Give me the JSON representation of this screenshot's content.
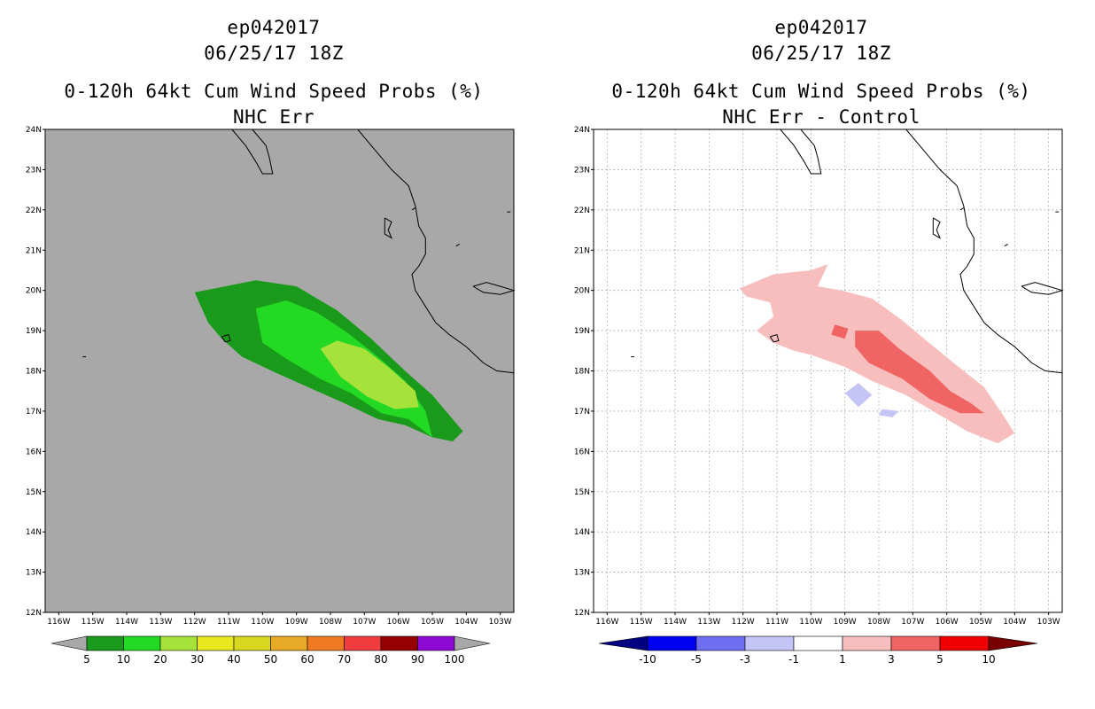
{
  "left": {
    "line1": "ep042017",
    "line2": "06/25/17 18Z",
    "line3": "0-120h 64kt Cum Wind Speed Probs (%)",
    "line4": "NHC Err"
  },
  "right": {
    "line1": "ep042017",
    "line2": "06/25/17 18Z",
    "line3": "0-120h 64kt Cum Wind Speed Probs (%)",
    "line4": "NHC Err - Control"
  },
  "colors": {
    "ocean": "#a8a8a8",
    "right_bg": "#ffffff",
    "coast": "#000000",
    "grid": "#9a9a9a"
  },
  "chart_data": [
    {
      "type": "heatmap",
      "title": "0-120h 64kt Cum Wind Speed Probs (%) - NHC Err",
      "x_ticks": [
        "116W",
        "115W",
        "114W",
        "113W",
        "112W",
        "111W",
        "110W",
        "109W",
        "108W",
        "107W",
        "106W",
        "105W",
        "104W",
        "103W"
      ],
      "y_ticks": [
        "12N",
        "13N",
        "14N",
        "15N",
        "16N",
        "17N",
        "18N",
        "19N",
        "20N",
        "21N",
        "22N",
        "23N",
        "24N"
      ],
      "xlim": [
        -116.4,
        -102.6
      ],
      "ylim": [
        12,
        24
      ],
      "grid": false,
      "contours": [
        {
          "level": 5,
          "color": "#1a9a1a",
          "points": [
            [
              -112.0,
              19.95
            ],
            [
              -111.4,
              20.05
            ],
            [
              -110.2,
              20.25
            ],
            [
              -109.0,
              20.1
            ],
            [
              -107.8,
              19.5
            ],
            [
              -106.8,
              18.8
            ],
            [
              -105.8,
              18.0
            ],
            [
              -105.0,
              17.4
            ],
            [
              -104.1,
              16.5
            ],
            [
              -104.4,
              16.25
            ],
            [
              -105.0,
              16.35
            ],
            [
              -105.8,
              16.65
            ],
            [
              -106.6,
              16.8
            ],
            [
              -107.6,
              17.2
            ],
            [
              -108.4,
              17.5
            ],
            [
              -109.6,
              17.95
            ],
            [
              -110.6,
              18.35
            ],
            [
              -111.2,
              18.8
            ],
            [
              -111.6,
              19.2
            ]
          ]
        },
        {
          "level": 10,
          "color": "#23d923",
          "points": [
            [
              -110.2,
              19.55
            ],
            [
              -109.3,
              19.75
            ],
            [
              -108.4,
              19.45
            ],
            [
              -107.5,
              18.95
            ],
            [
              -106.6,
              18.35
            ],
            [
              -105.8,
              17.75
            ],
            [
              -105.2,
              17.0
            ],
            [
              -105.0,
              16.35
            ],
            [
              -105.7,
              16.8
            ],
            [
              -106.5,
              16.95
            ],
            [
              -107.4,
              17.45
            ],
            [
              -108.3,
              17.8
            ],
            [
              -109.3,
              18.3
            ],
            [
              -110.0,
              18.7
            ]
          ]
        },
        {
          "level": 20,
          "color": "#a6e23a",
          "points": [
            [
              -108.3,
              18.55
            ],
            [
              -107.8,
              18.75
            ],
            [
              -107.0,
              18.55
            ],
            [
              -106.3,
              18.1
            ],
            [
              -105.5,
              17.5
            ],
            [
              -105.4,
              17.1
            ],
            [
              -106.1,
              17.05
            ],
            [
              -106.9,
              17.35
            ],
            [
              -107.7,
              17.85
            ]
          ]
        }
      ],
      "colorbar": {
        "labels": [
          "5",
          "10",
          "20",
          "30",
          "40",
          "50",
          "60",
          "70",
          "80",
          "90",
          "100"
        ],
        "colors": [
          "#a8a8a8",
          "#1a9a1a",
          "#23d923",
          "#a6e23a",
          "#e8e81e",
          "#d8d820",
          "#e6aa28",
          "#ef7a22",
          "#f03c3c",
          "#960000",
          "#8c0ad2",
          "#a8a8a8"
        ]
      }
    },
    {
      "type": "heatmap",
      "title": "0-120h 64kt Cum Wind Speed Probs (%) - NHC Err - Control",
      "x_ticks": [
        "116W",
        "115W",
        "114W",
        "113W",
        "112W",
        "111W",
        "110W",
        "109W",
        "108W",
        "107W",
        "106W",
        "105W",
        "104W",
        "103W"
      ],
      "y_ticks": [
        "12N",
        "13N",
        "14N",
        "15N",
        "16N",
        "17N",
        "18N",
        "19N",
        "20N",
        "21N",
        "22N",
        "23N",
        "24N"
      ],
      "xlim": [
        -116.4,
        -102.6
      ],
      "ylim": [
        12,
        24
      ],
      "grid": true,
      "contours": [
        {
          "level": 1,
          "color": "#f8bebe",
          "points": [
            [
              -112.1,
              20.05
            ],
            [
              -111.1,
              20.4
            ],
            [
              -110.0,
              20.5
            ],
            [
              -109.5,
              20.65
            ],
            [
              -109.8,
              20.1
            ],
            [
              -109.1,
              20.0
            ],
            [
              -108.2,
              19.8
            ],
            [
              -107.3,
              19.25
            ],
            [
              -106.6,
              18.75
            ],
            [
              -105.8,
              18.2
            ],
            [
              -104.9,
              17.6
            ],
            [
              -104.3,
              16.85
            ],
            [
              -104.0,
              16.45
            ],
            [
              -104.5,
              16.2
            ],
            [
              -105.4,
              16.5
            ],
            [
              -106.2,
              16.9
            ],
            [
              -107.2,
              17.4
            ],
            [
              -108.2,
              17.75
            ],
            [
              -109.0,
              18.1
            ],
            [
              -110.0,
              18.4
            ],
            [
              -110.5,
              18.5
            ],
            [
              -111.1,
              18.7
            ],
            [
              -111.6,
              19.0
            ],
            [
              -111.1,
              19.35
            ],
            [
              -111.2,
              19.7
            ],
            [
              -111.9,
              19.85
            ]
          ]
        },
        {
          "level": 3,
          "color": "#f06464",
          "points": [
            [
              -108.7,
              19.0
            ],
            [
              -108.0,
              19.0
            ],
            [
              -107.4,
              18.55
            ],
            [
              -106.5,
              18.0
            ],
            [
              -105.9,
              17.5
            ],
            [
              -105.3,
              17.2
            ],
            [
              -104.9,
              16.95
            ],
            [
              -105.6,
              16.95
            ],
            [
              -106.5,
              17.3
            ],
            [
              -107.3,
              17.8
            ],
            [
              -108.3,
              18.2
            ],
            [
              -108.7,
              18.6
            ]
          ]
        },
        {
          "level": 3,
          "color": "#f06464",
          "points": [
            [
              -109.3,
              19.15
            ],
            [
              -108.9,
              19.05
            ],
            [
              -109.0,
              18.8
            ],
            [
              -109.4,
              18.9
            ]
          ]
        },
        {
          "level": -1,
          "color": "#c4c4f6",
          "points": [
            [
              -108.6,
              17.7
            ],
            [
              -108.2,
              17.4
            ],
            [
              -108.6,
              17.1
            ],
            [
              -109.0,
              17.45
            ]
          ]
        },
        {
          "level": -1,
          "color": "#c4c4f6",
          "points": [
            [
              -107.9,
              17.05
            ],
            [
              -107.4,
              17.0
            ],
            [
              -107.6,
              16.85
            ],
            [
              -108.0,
              16.9
            ]
          ]
        }
      ],
      "colorbar": {
        "labels": [
          "-10",
          "-5",
          "-3",
          "-1",
          "1",
          "3",
          "5",
          "10"
        ],
        "colors": [
          "#000080",
          "#0000f0",
          "#6e6ef0",
          "#c4c4f6",
          "#ffffff",
          "#f8bebe",
          "#f06464",
          "#f00000",
          "#780000"
        ]
      }
    }
  ],
  "coastlines": [
    [
      [
        -110.9,
        24.0
      ],
      [
        -110.5,
        23.6
      ],
      [
        -110.2,
        23.2
      ],
      [
        -110.0,
        22.9
      ],
      [
        -109.7,
        22.9
      ],
      [
        -109.8,
        23.3
      ],
      [
        -109.9,
        23.6
      ],
      [
        -110.3,
        24.0
      ],
      [
        -110.3,
        24.0
      ]
    ],
    [
      [
        -107.2,
        24.0
      ],
      [
        -106.7,
        23.5
      ],
      [
        -106.2,
        23.0
      ],
      [
        -105.7,
        22.6
      ],
      [
        -105.5,
        22.1
      ],
      [
        -105.4,
        21.6
      ],
      [
        -105.2,
        21.3
      ],
      [
        -105.2,
        20.9
      ],
      [
        -105.4,
        20.6
      ],
      [
        -105.6,
        20.4
      ],
      [
        -105.5,
        20.0
      ],
      [
        -105.2,
        19.6
      ],
      [
        -104.9,
        19.2
      ],
      [
        -104.5,
        18.9
      ],
      [
        -104.0,
        18.6
      ],
      [
        -103.5,
        18.2
      ],
      [
        -103.1,
        18.0
      ],
      [
        -102.6,
        17.95
      ]
    ],
    [
      [
        -106.4,
        21.8
      ],
      [
        -106.2,
        21.7
      ],
      [
        -106.3,
        21.5
      ],
      [
        -106.2,
        21.3
      ],
      [
        -106.4,
        21.4
      ],
      [
        -106.4,
        21.6
      ],
      [
        -106.4,
        21.8
      ]
    ],
    [
      [
        -103.8,
        20.1
      ],
      [
        -103.4,
        20.2
      ],
      [
        -103.0,
        20.1
      ],
      [
        -102.6,
        20.0
      ],
      [
        -103.0,
        19.9
      ],
      [
        -103.5,
        19.95
      ],
      [
        -103.8,
        20.1
      ]
    ],
    [
      [
        -111.2,
        18.85
      ],
      [
        -111.0,
        18.9
      ],
      [
        -110.95,
        18.75
      ],
      [
        -111.1,
        18.72
      ],
      [
        -111.2,
        18.85
      ]
    ],
    [
      [
        -115.3,
        18.35
      ],
      [
        -115.2,
        18.35
      ]
    ],
    [
      [
        -105.6,
        22.0
      ],
      [
        -105.5,
        22.05
      ]
    ],
    [
      [
        -104.3,
        21.1
      ],
      [
        -104.2,
        21.15
      ]
    ],
    [
      [
        -102.8,
        21.95
      ],
      [
        -102.7,
        21.95
      ]
    ]
  ]
}
